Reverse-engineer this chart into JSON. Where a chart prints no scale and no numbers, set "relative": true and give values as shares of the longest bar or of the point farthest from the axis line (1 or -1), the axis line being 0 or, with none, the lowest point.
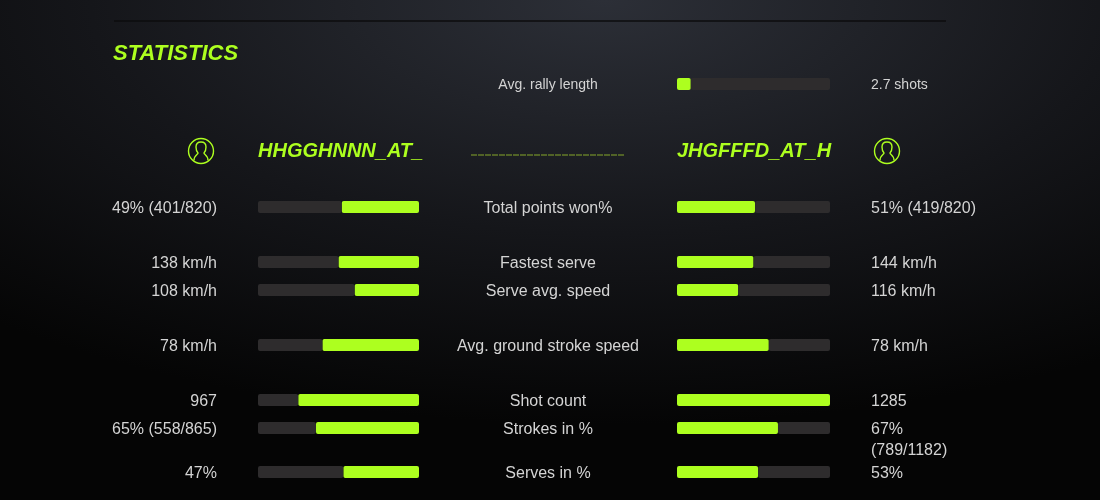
{
  "chart_data": [
    {
      "type": "bar",
      "orientation": "horizontal",
      "relative": true,
      "stacked": true,
      "tick_labels": "y",
      "categories": [
        "Avg. rally length"
      ],
      "series": [
        {
          "color": "#adff1f",
          "values": [
            0.09
          ]
        },
        {
          "color": "#2e2c2d",
          "values": [
            0.91
          ]
        }
      ],
      "annotations": [
        "2.7 shots"
      ]
    },
    {
      "type": "bar",
      "orientation": "horizontal",
      "relative": true,
      "stacked": true,
      "title": "STATISTICS",
      "tick_labels": false,
      "categories": [
        "Total points won%",
        "Fastest serve",
        "Serve avg. speed",
        "Avg. ground stroke speed",
        "Shot count",
        "Strokes in %",
        "Serves in %"
      ],
      "series": [
        {
          "name": "HHGGHNNN_AT_",
          "color": "#adff1f",
          "values": [
            0.48,
            0.5,
            0.4,
            0.6,
            0.75,
            0.64,
            0.47
          ]
        },
        {
          "color": "#2e2c2d",
          "values": [
            0.52,
            0.5,
            0.6,
            0.4,
            0.25,
            0.36,
            0.53
          ]
        }
      ],
      "annotations": [
        "49% (401/820)",
        "138 km/h",
        "108 km/h",
        "78 km/h",
        "967",
        "65% (558/865)",
        "47%"
      ]
    },
    {
      "type": "bar",
      "orientation": "horizontal",
      "relative": true,
      "stacked": true,
      "tick_labels": "y",
      "categories": [
        "Total points won%",
        "Fastest serve",
        "Serve avg. speed",
        "Avg. ground stroke speed",
        "Shot count",
        "Strokes in %",
        "Serves in %"
      ],
      "series": [
        {
          "name": "JHGFFFD_AT_H",
          "color": "#adff1f",
          "values": [
            0.51,
            0.5,
            0.4,
            0.6,
            1.0,
            0.66,
            0.53
          ]
        },
        {
          "color": "#2e2c2d",
          "values": [
            0.49,
            0.5,
            0.6,
            0.4,
            0,
            0.34,
            0.47
          ]
        }
      ],
      "annotations": [
        "51% (419/820)",
        "144 km/h",
        "116 km/h",
        "78 km/h",
        "1285",
        "67% (789/1182)",
        "53%"
      ]
    }
  ]
}
